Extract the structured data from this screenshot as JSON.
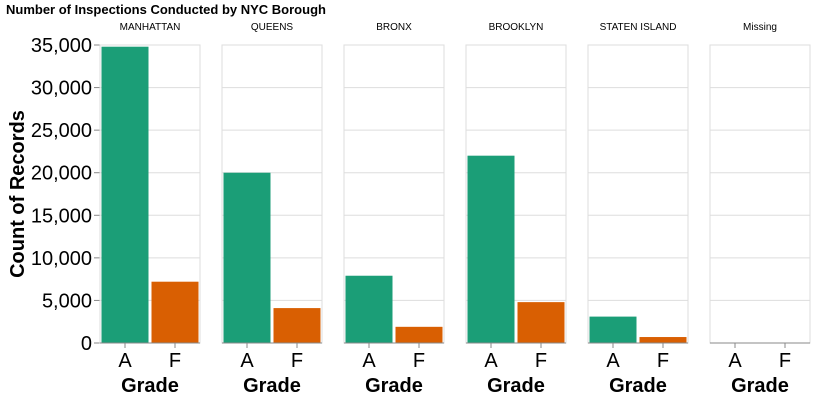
{
  "chart_data": {
    "type": "bar",
    "title": "Number of Inspections Conducted by NYC Borough",
    "ylabel": "Count of Records",
    "xlabel": "Grade",
    "ylim": [
      0,
      35000
    ],
    "yticks": [
      0,
      5000,
      10000,
      15000,
      20000,
      25000,
      30000,
      35000
    ],
    "ytick_labels": [
      "0",
      "5,000",
      "10,000",
      "15,000",
      "20,000",
      "25,000",
      "30,000",
      "35,000"
    ],
    "categories": [
      "A",
      "F"
    ],
    "colors": {
      "A": "#1b9e77",
      "F": "#d95f02"
    },
    "grid": true,
    "facets": [
      {
        "name": "MANHATTAN",
        "values": [
          34800,
          7200
        ]
      },
      {
        "name": "QUEENS",
        "values": [
          20000,
          4100
        ]
      },
      {
        "name": "BRONX",
        "values": [
          7900,
          1900
        ]
      },
      {
        "name": "BROOKLYN",
        "values": [
          22000,
          4800
        ]
      },
      {
        "name": "STATEN ISLAND",
        "values": [
          3100,
          700
        ]
      },
      {
        "name": "Missing",
        "values": [
          0,
          0
        ]
      }
    ]
  }
}
